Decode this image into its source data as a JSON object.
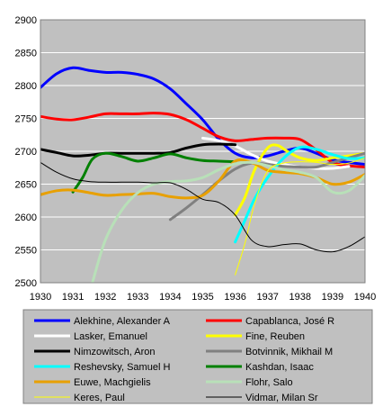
{
  "chart_data": {
    "type": "line",
    "title": "",
    "xlabel": "",
    "ylabel": "",
    "xlim": [
      1930,
      1940
    ],
    "ylim": [
      2500,
      2900
    ],
    "x_ticks": [
      "1930",
      "1931",
      "1932",
      "1933",
      "1934",
      "1935",
      "1936",
      "1937",
      "1938",
      "1939",
      "1940"
    ],
    "y_ticks": [
      "2500",
      "2550",
      "2600",
      "2650",
      "2700",
      "2750",
      "2800",
      "2850",
      "2900"
    ],
    "grid": "horizontal",
    "legend_position": "bottom",
    "series": [
      {
        "name": "Alekhine, Alexander A",
        "color": "#0000ff",
        "width": 3,
        "points": [
          [
            1930,
            2797
          ],
          [
            1930.5,
            2818
          ],
          [
            1931,
            2827
          ],
          [
            1931.5,
            2823
          ],
          [
            1932,
            2820
          ],
          [
            1932.5,
            2820
          ],
          [
            1933,
            2817
          ],
          [
            1933.5,
            2810
          ],
          [
            1934,
            2795
          ],
          [
            1934.5,
            2772
          ],
          [
            1935,
            2748
          ],
          [
            1935.5,
            2718
          ],
          [
            1936,
            2697
          ],
          [
            1936.5,
            2690
          ],
          [
            1937,
            2693
          ],
          [
            1937.5,
            2700
          ],
          [
            1938,
            2705
          ],
          [
            1938.5,
            2697
          ],
          [
            1939,
            2687
          ],
          [
            1939.5,
            2683
          ],
          [
            1940,
            2680
          ]
        ]
      },
      {
        "name": "Capablanca, José R",
        "color": "#ff0000",
        "width": 3,
        "points": [
          [
            1930,
            2753
          ],
          [
            1930.5,
            2749
          ],
          [
            1931,
            2748
          ],
          [
            1931.5,
            2752
          ],
          [
            1932,
            2757
          ],
          [
            1932.5,
            2757
          ],
          [
            1933,
            2757
          ],
          [
            1933.5,
            2758
          ],
          [
            1934,
            2756
          ],
          [
            1934.5,
            2748
          ],
          [
            1935,
            2735
          ],
          [
            1935.5,
            2722
          ],
          [
            1936,
            2716
          ],
          [
            1936.5,
            2718
          ],
          [
            1937,
            2720
          ],
          [
            1937.5,
            2720
          ],
          [
            1938,
            2718
          ],
          [
            1938.5,
            2702
          ],
          [
            1939,
            2683
          ],
          [
            1939.5,
            2678
          ],
          [
            1940,
            2676
          ]
        ]
      },
      {
        "name": "Lasker, Emanuel",
        "color": "#ffffff",
        "width": 3,
        "points": [
          [
            1935,
            2720
          ],
          [
            1935.5,
            2716
          ],
          [
            1936,
            2708
          ],
          [
            1936.5,
            2695
          ],
          [
            1937,
            2685
          ],
          [
            1937.5,
            2680
          ],
          [
            1938,
            2676
          ],
          [
            1938.5,
            2674
          ],
          [
            1939,
            2674
          ],
          [
            1939.5,
            2677
          ]
        ]
      },
      {
        "name": "Fine, Reuben",
        "color": "#ffff00",
        "width": 3,
        "points": [
          [
            1936,
            2603
          ],
          [
            1936.3,
            2630
          ],
          [
            1936.6,
            2672
          ],
          [
            1937,
            2705
          ],
          [
            1937.3,
            2709
          ],
          [
            1937.6,
            2700
          ],
          [
            1938,
            2690
          ],
          [
            1938.5,
            2686
          ],
          [
            1939,
            2690
          ],
          [
            1939.5,
            2693
          ],
          [
            1940,
            2697
          ]
        ]
      },
      {
        "name": "Nimzowitsch, Aron",
        "color": "#000000",
        "width": 3,
        "points": [
          [
            1930,
            2703
          ],
          [
            1930.5,
            2698
          ],
          [
            1931,
            2693
          ],
          [
            1931.5,
            2694
          ],
          [
            1932,
            2697
          ],
          [
            1932.5,
            2697
          ],
          [
            1933,
            2697
          ],
          [
            1933.5,
            2697
          ],
          [
            1934,
            2698
          ],
          [
            1934.5,
            2705
          ],
          [
            1935,
            2710
          ],
          [
            1935.5,
            2711
          ],
          [
            1936,
            2710
          ]
        ]
      },
      {
        "name": "Botvinnik, Mikhail M",
        "color": "#808080",
        "width": 3,
        "points": [
          [
            1934,
            2596
          ],
          [
            1934.5,
            2614
          ],
          [
            1935,
            2634
          ],
          [
            1935.5,
            2655
          ],
          [
            1936,
            2673
          ],
          [
            1936.5,
            2682
          ],
          [
            1937,
            2680
          ],
          [
            1937.5,
            2677
          ],
          [
            1938,
            2676
          ],
          [
            1938.5,
            2676
          ],
          [
            1939,
            2683
          ],
          [
            1939.5,
            2690
          ],
          [
            1940,
            2697
          ]
        ]
      },
      {
        "name": "Reshevsky, Samuel H",
        "color": "#00ffff",
        "width": 3,
        "points": [
          [
            1936,
            2562
          ],
          [
            1936.3,
            2595
          ],
          [
            1936.6,
            2628
          ],
          [
            1937,
            2660
          ],
          [
            1937.5,
            2690
          ],
          [
            1938,
            2706
          ],
          [
            1938.5,
            2703
          ],
          [
            1939,
            2695
          ],
          [
            1939.5,
            2689
          ],
          [
            1940,
            2690
          ]
        ]
      },
      {
        "name": "Kashdan, Isaac",
        "color": "#008000",
        "width": 3,
        "points": [
          [
            1931,
            2638
          ],
          [
            1931.3,
            2660
          ],
          [
            1931.6,
            2688
          ],
          [
            1932,
            2697
          ],
          [
            1932.5,
            2692
          ],
          [
            1933,
            2685
          ],
          [
            1933.5,
            2690
          ],
          [
            1934,
            2696
          ],
          [
            1934.5,
            2690
          ],
          [
            1935,
            2686
          ],
          [
            1935.5,
            2685
          ],
          [
            1936,
            2684
          ]
        ]
      },
      {
        "name": "Euwe, Machgielis",
        "color": "#e8a000",
        "width": 3,
        "points": [
          [
            1930,
            2634
          ],
          [
            1930.5,
            2640
          ],
          [
            1931,
            2641
          ],
          [
            1931.5,
            2637
          ],
          [
            1932,
            2633
          ],
          [
            1932.5,
            2634
          ],
          [
            1933,
            2635
          ],
          [
            1933.5,
            2636
          ],
          [
            1934,
            2631
          ],
          [
            1934.5,
            2629
          ],
          [
            1935,
            2633
          ],
          [
            1935.5,
            2655
          ],
          [
            1936,
            2685
          ],
          [
            1936.5,
            2683
          ],
          [
            1937,
            2671
          ],
          [
            1937.5,
            2668
          ],
          [
            1938,
            2666
          ],
          [
            1938.5,
            2660
          ],
          [
            1939,
            2650
          ],
          [
            1939.5,
            2653
          ],
          [
            1940,
            2665
          ]
        ]
      },
      {
        "name": "Flohr, Salo",
        "color": "#b8e0b8",
        "width": 3,
        "points": [
          [
            1931.6,
            2500
          ],
          [
            1932,
            2565
          ],
          [
            1932.5,
            2610
          ],
          [
            1933,
            2637
          ],
          [
            1933.5,
            2650
          ],
          [
            1934,
            2654
          ],
          [
            1934.5,
            2655
          ],
          [
            1935,
            2660
          ],
          [
            1935.5,
            2672
          ],
          [
            1936,
            2681
          ],
          [
            1936.5,
            2683
          ],
          [
            1937,
            2678
          ],
          [
            1937.5,
            2672
          ],
          [
            1938,
            2668
          ],
          [
            1938.5,
            2660
          ],
          [
            1939,
            2638
          ],
          [
            1939.5,
            2640
          ],
          [
            1940,
            2663
          ]
        ]
      },
      {
        "name": "Keres, Paul",
        "color": "#ffff00",
        "width": 1,
        "points": [
          [
            1936,
            2512
          ],
          [
            1936.3,
            2560
          ],
          [
            1936.6,
            2620
          ],
          [
            1937,
            2670
          ],
          [
            1937.5,
            2682
          ],
          [
            1938,
            2684
          ],
          [
            1938.5,
            2683
          ],
          [
            1939,
            2680
          ],
          [
            1939.5,
            2682
          ],
          [
            1940,
            2690
          ]
        ]
      },
      {
        "name": "Vidmar, Milan Sr",
        "color": "#000000",
        "width": 1,
        "points": [
          [
            1930,
            2683
          ],
          [
            1930.5,
            2668
          ],
          [
            1931,
            2658
          ],
          [
            1931.5,
            2654
          ],
          [
            1932,
            2653
          ],
          [
            1932.5,
            2653
          ],
          [
            1933,
            2653
          ],
          [
            1933.5,
            2652
          ],
          [
            1934,
            2652
          ],
          [
            1934.5,
            2642
          ],
          [
            1935,
            2627
          ],
          [
            1935.5,
            2622
          ],
          [
            1936,
            2603
          ],
          [
            1936.5,
            2565
          ],
          [
            1937,
            2555
          ],
          [
            1937.5,
            2558
          ],
          [
            1938,
            2559
          ],
          [
            1938.5,
            2550
          ],
          [
            1939,
            2547
          ],
          [
            1939.5,
            2555
          ],
          [
            1940,
            2570
          ]
        ]
      }
    ]
  },
  "colors": {
    "plot_background": "#c0c0c0",
    "legend_background": "#c0c0c0",
    "grid": "#ffffff",
    "axis": "#808080"
  }
}
